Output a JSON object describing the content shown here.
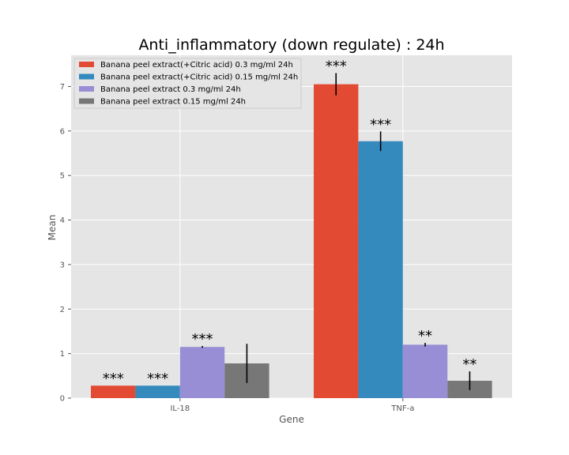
{
  "chart_data": {
    "type": "bar",
    "title": "Anti_inflammatory (down regulate) : 24h",
    "xlabel": "Gene",
    "ylabel": "Mean",
    "categories": [
      "IL-18",
      "TNF-a"
    ],
    "ylim": [
      0,
      7.7
    ],
    "yticks": [
      0,
      1,
      2,
      3,
      4,
      5,
      6,
      7
    ],
    "grid": true,
    "legend_position": "top-left",
    "series": [
      {
        "name": "Banana peel extract(+Citric acid) 0.3 mg/ml 24h",
        "color": "#e24a33",
        "values": [
          0.28,
          7.05
        ],
        "errors": [
          0.0,
          0.25
        ],
        "significance": [
          "***",
          "***"
        ]
      },
      {
        "name": "Banana peel extract(+Citric acid) 0.15 mg/ml 24h",
        "color": "#348abd",
        "values": [
          0.28,
          5.77
        ],
        "errors": [
          0.0,
          0.22
        ],
        "significance": [
          "***",
          "***"
        ]
      },
      {
        "name": "Banana peel extract 0.3 mg/ml 24h",
        "color": "#988ed5",
        "values": [
          1.15,
          1.2
        ],
        "errors": [
          0.02,
          0.04
        ],
        "significance": [
          "***",
          "**"
        ]
      },
      {
        "name": "Banana peel extract 0.15 mg/ml 24h",
        "color": "#777777",
        "values": [
          0.78,
          0.39
        ],
        "errors": [
          0.44,
          0.21
        ],
        "significance": [
          "",
          "**"
        ]
      }
    ]
  }
}
